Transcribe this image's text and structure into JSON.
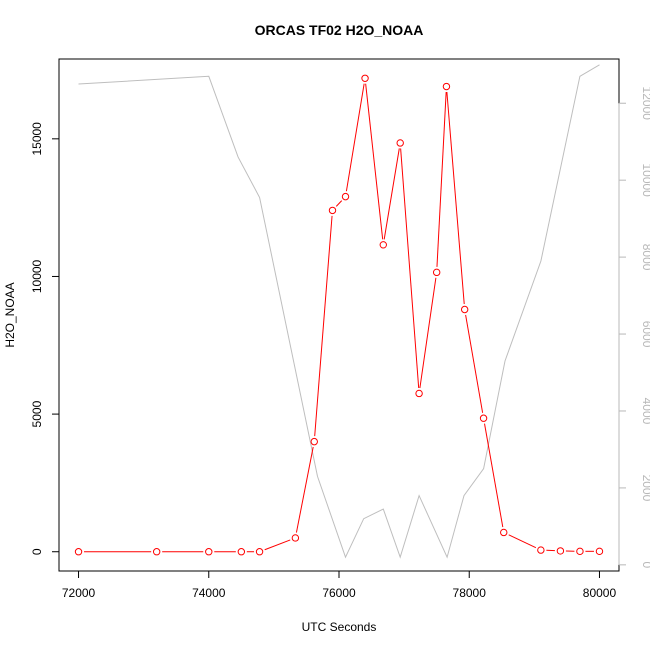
{
  "chart_data": {
    "type": "line",
    "title": "ORCAS TF02 H2O_NOAA",
    "xlabel": "UTC Seconds",
    "ylabel": "H2O_NOAA",
    "ylabel_right": "",
    "xlim": [
      71700,
      80300
    ],
    "ylim": [
      -700,
      17900
    ],
    "ylim_right": [
      -160,
      13150
    ],
    "x_ticks": [
      72000,
      74000,
      76000,
      78000,
      80000
    ],
    "y_ticks": [
      0,
      5000,
      10000,
      15000
    ],
    "y_ticks_right": [
      0,
      2000,
      4000,
      6000,
      8000,
      10000,
      12000
    ],
    "grid": false,
    "series": [
      {
        "color": "#ff0000",
        "axis": "left",
        "marker": "open-circle",
        "x": [
          72000,
          73200,
          74000,
          74500,
          74780,
          75330,
          75620,
          75900,
          76100,
          76400,
          76680,
          76940,
          77230,
          77500,
          77650,
          77930,
          78220,
          78530,
          79100,
          79400,
          79700,
          80000
        ],
        "y": [
          0,
          0,
          0,
          0,
          0,
          500,
          4000,
          12400,
          12900,
          17200,
          11150,
          14850,
          5750,
          10150,
          16900,
          8800,
          4850,
          700,
          60,
          30,
          15,
          15
        ]
      },
      {
        "color": "#bebebe",
        "axis": "right",
        "marker": "none",
        "x": [
          72000,
          74000,
          74450,
          74780,
          75670,
          76100,
          76380,
          76680,
          76940,
          77230,
          77660,
          77920,
          78220,
          78550,
          79100,
          79700,
          80000
        ],
        "y": [
          12500,
          12700,
          10600,
          9550,
          2300,
          200,
          1200,
          1450,
          200,
          1800,
          200,
          1800,
          2500,
          5300,
          7900,
          12700,
          13000
        ]
      }
    ]
  }
}
